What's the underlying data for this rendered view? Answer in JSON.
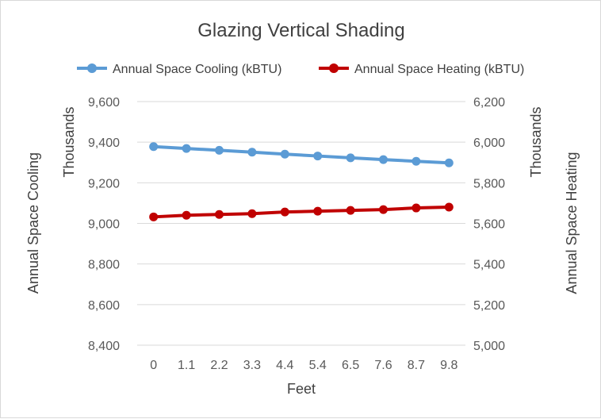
{
  "chart_data": {
    "type": "line",
    "title": "Glazing Vertical Shading",
    "xlabel": "Feet",
    "categories": [
      "0",
      "1.1",
      "2.2",
      "3.3",
      "4.4",
      "5.4",
      "6.5",
      "7.6",
      "8.7",
      "9.8"
    ],
    "y_left": {
      "label": "Annual Space Cooling",
      "unit_label": "Thousands",
      "ylim": [
        8400,
        9600
      ],
      "ticks": [
        "8,400",
        "8,600",
        "8,800",
        "9,000",
        "9,200",
        "9,400",
        "9,600"
      ]
    },
    "y_right": {
      "label": "Annual Space Heating",
      "unit_label": "Thousands",
      "ylim": [
        5000,
        6200
      ],
      "ticks": [
        "5,000",
        "5,200",
        "5,400",
        "5,600",
        "5,800",
        "6,000",
        "6,200"
      ]
    },
    "series": [
      {
        "name": "Annual Space Cooling (kBTU)",
        "axis": "left",
        "color": "#5b9bd5",
        "values": [
          9378,
          9369,
          9360,
          9351,
          9341,
          9332,
          9323,
          9314,
          9306,
          9298
        ]
      },
      {
        "name": "Annual Space Heating (kBTU)",
        "axis": "right",
        "color": "#c00000",
        "values": [
          5632,
          5640,
          5644,
          5648,
          5656,
          5660,
          5664,
          5668,
          5676,
          5680
        ]
      }
    ],
    "legend_position": "top",
    "grid": true
  }
}
